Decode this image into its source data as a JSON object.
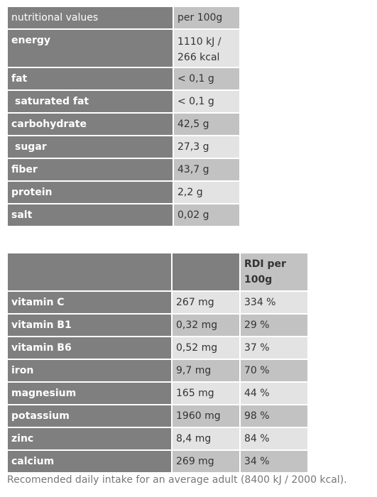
{
  "nutrition": {
    "header": {
      "label": "nutritional values",
      "value": "per 100g"
    },
    "energy": {
      "label": "energy",
      "value_line1": "1110 kJ /",
      "value_line2": "266 kcal"
    },
    "rows": [
      {
        "label": "fat",
        "value": "< 0,1 g"
      },
      {
        "label": "saturated fat",
        "value": "< 0,1 g"
      },
      {
        "label": "carbohydrate",
        "value": "42,5 g"
      },
      {
        "label": "sugar",
        "value": "27,3 g"
      },
      {
        "label": "fiber",
        "value": "43,7 g"
      },
      {
        "label": "protein",
        "value": "2,2 g"
      },
      {
        "label": "salt",
        "value": "0,02 g"
      }
    ]
  },
  "micronutrients": {
    "header": {
      "label": "",
      "amount": "",
      "rdi_line1": "RDI per",
      "rdi_line2": "100g"
    },
    "rows": [
      {
        "label": "vitamin C",
        "amount": "267 mg",
        "rdi": "334 %"
      },
      {
        "label": "vitamin B1",
        "amount": "0,32 mg",
        "rdi": "29 %"
      },
      {
        "label": "vitamin B6",
        "amount": "0,52 mg",
        "rdi": "37 %"
      },
      {
        "label": "iron",
        "amount": "9,7 mg",
        "rdi": "70 %"
      },
      {
        "label": "magnesium",
        "amount": "165 mg",
        "rdi": "44 %"
      },
      {
        "label": "potassium",
        "amount": "1960 mg",
        "rdi": "98 %"
      },
      {
        "label": "zinc",
        "amount": "8,4 mg",
        "rdi": "84 %"
      },
      {
        "label": "calcium",
        "amount": "269 mg",
        "rdi": "34 %"
      }
    ]
  },
  "footnote": "Recomended daily intake for an average adult (8400 kJ / 2000 kcal)."
}
